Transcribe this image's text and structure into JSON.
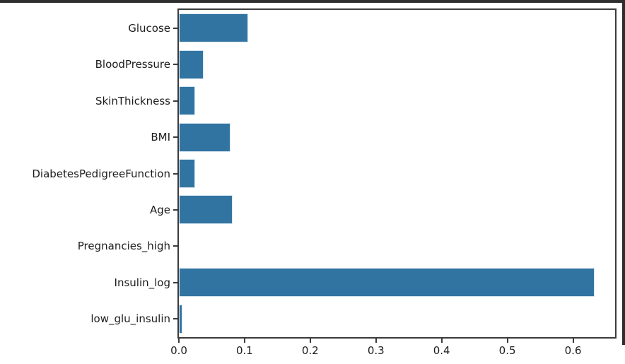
{
  "window": {
    "border_color": "#2e2e2e"
  },
  "chart_data": {
    "type": "bar",
    "orientation": "horizontal",
    "title": "",
    "xlabel": "",
    "ylabel": "",
    "categories": [
      "Glucose",
      "BloodPressure",
      "SkinThickness",
      "BMI",
      "DiabetesPedigreeFunction",
      "Age",
      "Pregnancies_high",
      "Insulin_log",
      "low_glu_insulin"
    ],
    "values": [
      0.105,
      0.038,
      0.025,
      0.079,
      0.025,
      0.082,
      0.0,
      0.633,
      0.005
    ],
    "xlim": [
      0,
      0.664
    ],
    "x_ticks": [
      0.0,
      0.1,
      0.2,
      0.3,
      0.4,
      0.5,
      0.6
    ],
    "x_tick_labels": [
      "0.0",
      "0.1",
      "0.2",
      "0.3",
      "0.4",
      "0.5",
      "0.6"
    ],
    "grid": false,
    "legend": null,
    "bar_color": "#3274a1",
    "bar_edge_color": "#d7e7f2",
    "spine_color": "#3b3b3b",
    "tick_color": "#3b3b3b",
    "text_color": "#1c1c1c"
  }
}
